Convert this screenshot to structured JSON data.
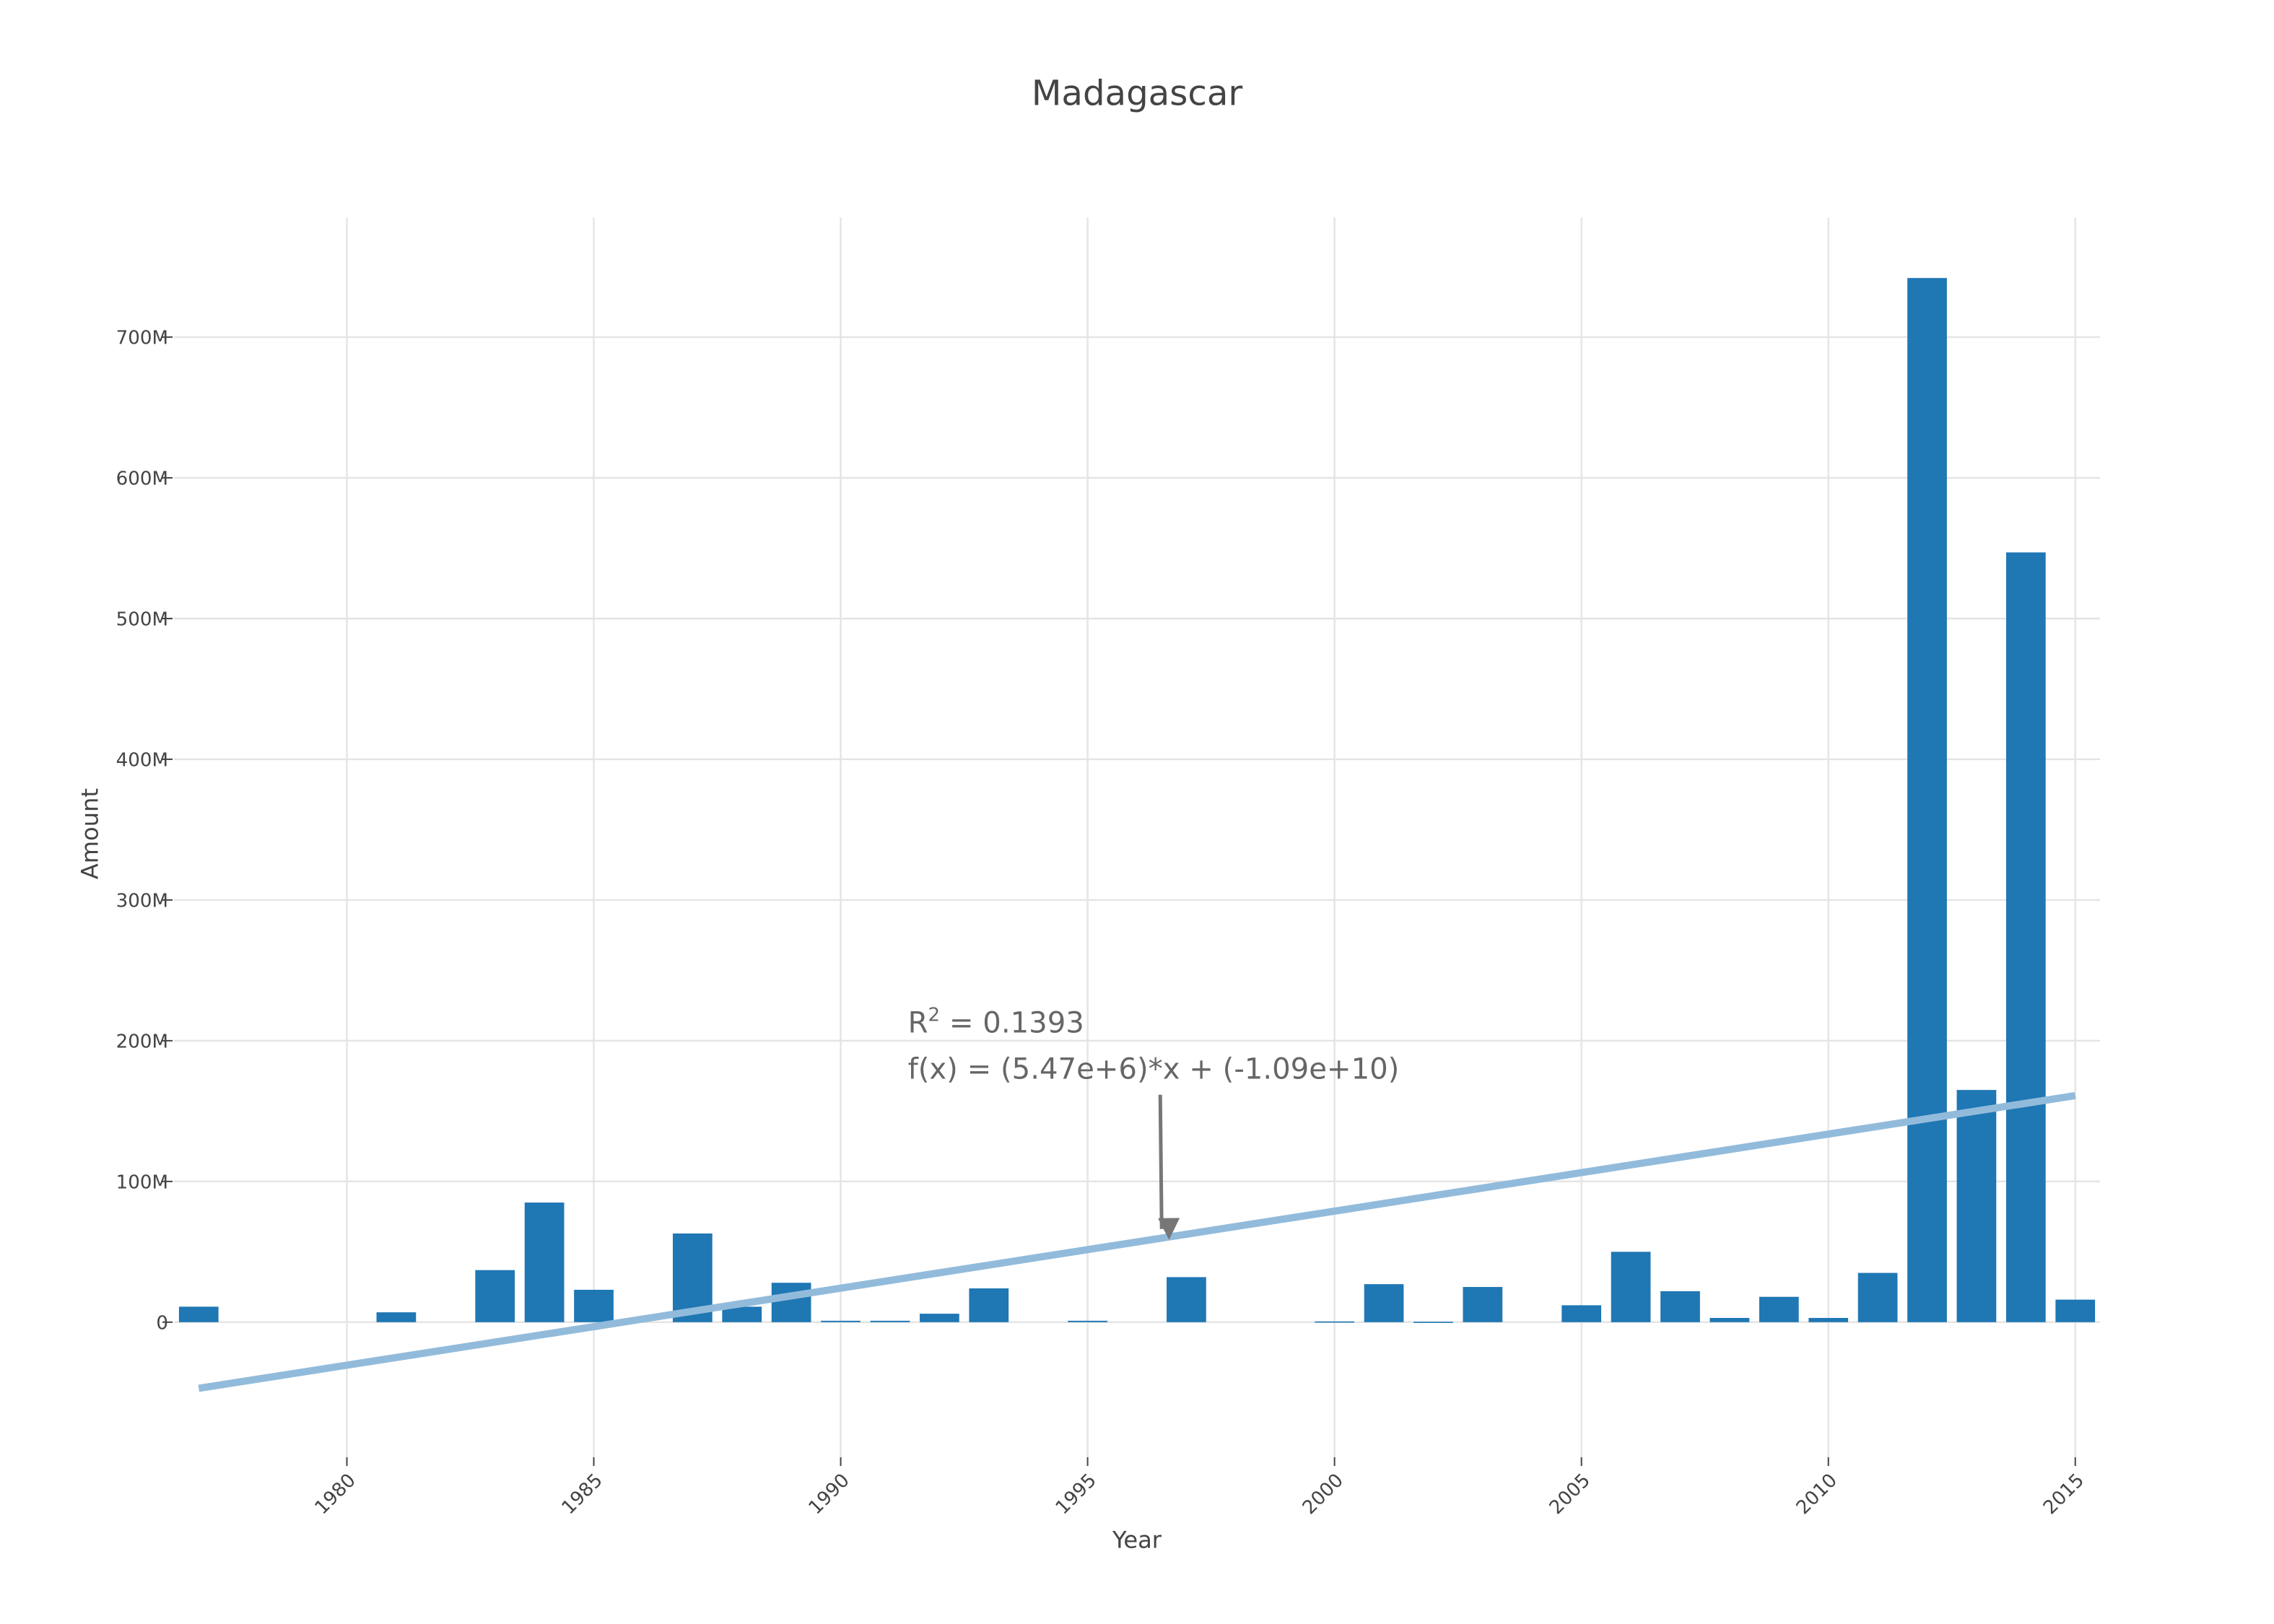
{
  "chart_data": {
    "type": "bar",
    "title": "Madagascar",
    "x_label": "Year",
    "y_label": "Amount",
    "x": [
      1977,
      1981,
      1983,
      1984,
      1985,
      1987,
      1988,
      1989,
      1990,
      1991,
      1992,
      1993,
      1995,
      1997,
      2000,
      2001,
      2002,
      2003,
      2005,
      2006,
      2007,
      2008,
      2009,
      2010,
      2011,
      2012,
      2013,
      2014,
      2015
    ],
    "values": [
      11000000,
      7000000,
      37000000,
      85000000,
      23000000,
      63000000,
      11000000,
      28000000,
      1000000,
      1000000,
      6000000,
      24000000,
      1000000,
      32000000,
      500000,
      27000000,
      300000,
      25000000,
      12000000,
      50000000,
      22000000,
      3000000,
      18000000,
      3000000,
      35000000,
      742000000,
      165000000,
      547000000,
      16000000
    ],
    "color": "#1f77b4",
    "trend": {
      "x": [
        1977,
        2015
      ],
      "values": [
        -47000000,
        161000000
      ],
      "color": "#92bbdb"
    },
    "annotation": {
      "r_label": "R",
      "r_superscript": "2",
      "r_value": " = 0.1393",
      "formula": "f(x) = (5.47e+6)*x + (-1.09e+10)",
      "x": 1996.5,
      "y": 60000000
    },
    "xlim": [
      1976.5,
      2015.5
    ],
    "ylim": [
      -96000000,
      785000000
    ],
    "xticks": [
      1980,
      1985,
      1990,
      1995,
      2000,
      2005,
      2010,
      2015
    ],
    "yticks": [
      {
        "value": 0,
        "label": "0"
      },
      {
        "value": 100000000,
        "label": "100M"
      },
      {
        "value": 200000000,
        "label": "200M"
      },
      {
        "value": 300000000,
        "label": "300M"
      },
      {
        "value": 400000000,
        "label": "400M"
      },
      {
        "value": 500000000,
        "label": "500M"
      },
      {
        "value": 600000000,
        "label": "600M"
      },
      {
        "value": 700000000,
        "label": "700M"
      }
    ],
    "grid": true
  }
}
